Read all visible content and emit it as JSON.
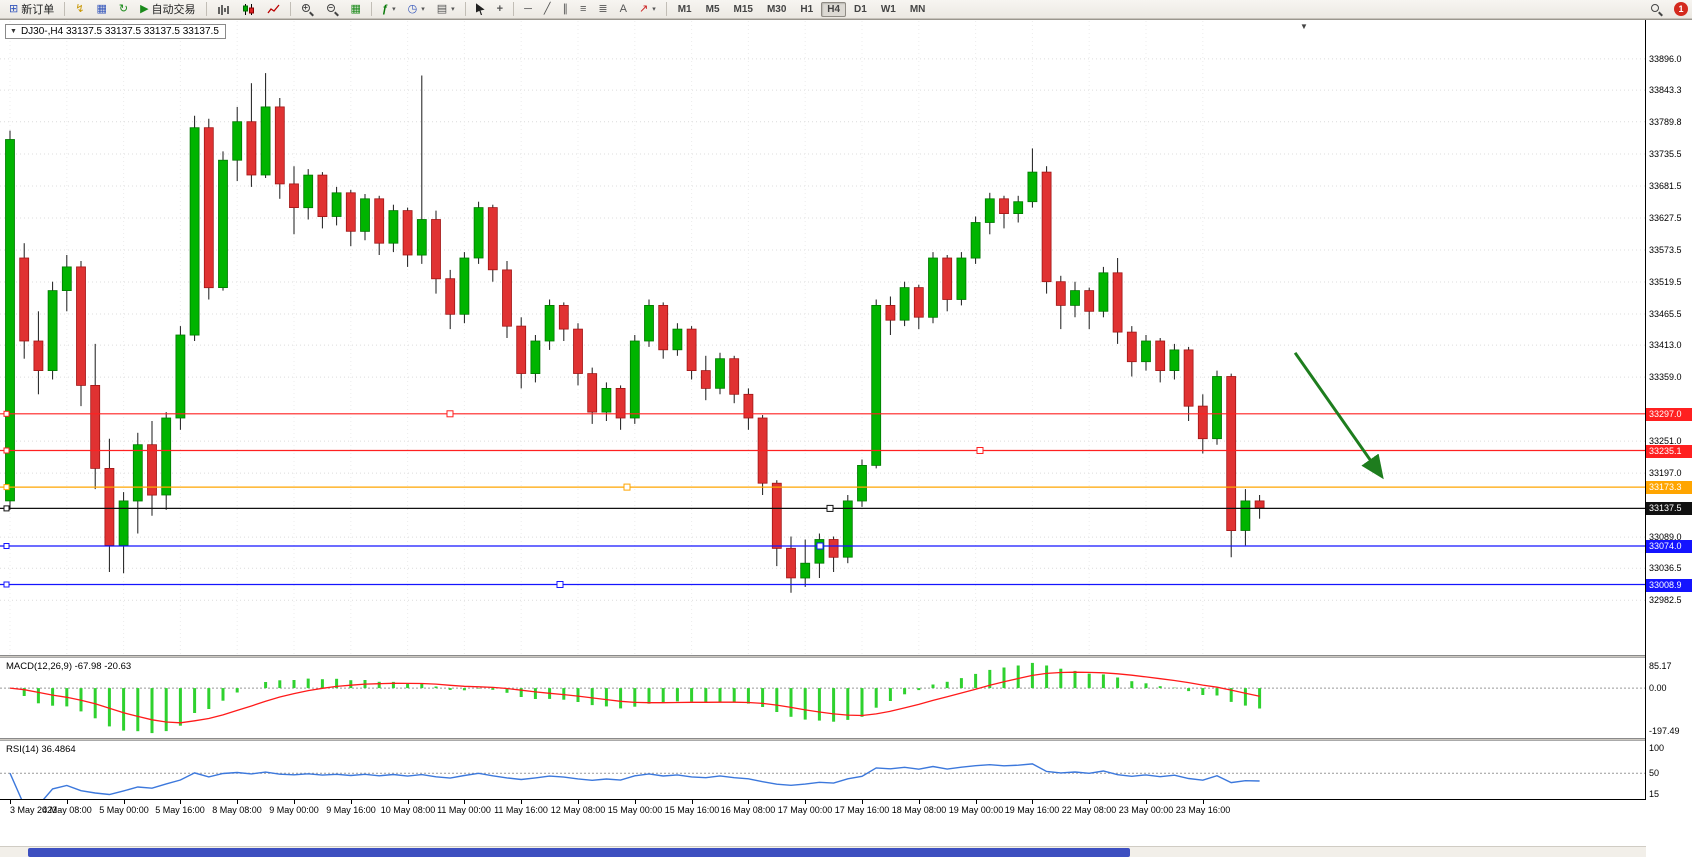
{
  "toolbar": {
    "new_order_label": "新订单",
    "autotrading_label": "自动交易",
    "timeframes": [
      "M1",
      "M5",
      "M15",
      "M30",
      "H1",
      "H4",
      "D1",
      "W1",
      "MN"
    ],
    "active_timeframe": "H4",
    "notification_badge": "1",
    "icon_glyphs": {
      "new_order": "⊞",
      "charts": "↯",
      "market_watch": "▦",
      "refresh": "↻",
      "play": "▶",
      "zoom_in": "+",
      "zoom_out": "−",
      "grid_toggle": "▦",
      "indicator_add": "ƒ",
      "period_clock": "◷",
      "template": "▤",
      "crosshair": "+",
      "hline_tool": "─",
      "trendline_tool": "╱",
      "channel_tool": "∥",
      "fibo_tool": "≡",
      "shapes_tool": "≣",
      "text_tool": "A",
      "arrow_tool": "↗",
      "dropdown": "▾"
    }
  },
  "chart": {
    "title": "DJ30-,H4 33137.5 33137.5 33137.5 33137.5",
    "symbol": "DJ30-",
    "period": "H4",
    "scroll_marker": "▼"
  },
  "indicators": {
    "macd": {
      "label": "MACD(12,26,9) -67.98 -20.63",
      "axis": [
        "85.17",
        "0.00",
        "-197.49"
      ]
    },
    "rsi": {
      "label": "RSI(14) 36.4864",
      "axis": [
        "100",
        "50",
        "15"
      ]
    }
  },
  "chart_data": {
    "type": "candlestick",
    "symbol": "DJ30-",
    "timeframe": "H4",
    "ylim": [
      32890,
      33960
    ],
    "y_ticks": [
      33896.0,
      33843.3,
      33789.8,
      33735.5,
      33681.5,
      33627.5,
      33573.5,
      33519.5,
      33465.5,
      33413.0,
      33359.0,
      33251.0,
      33197.0,
      33089.0,
      33036.5,
      32982.5
    ],
    "label_step": 4,
    "time_labels": [
      "3 May 2023",
      "4 May 08:00",
      "5 May 00:00",
      "5 May 16:00",
      "8 May 08:00",
      "9 May 00:00",
      "9 May 16:00",
      "10 May 08:00",
      "11 May 00:00",
      "11 May 16:00",
      "12 May 08:00",
      "15 May 00:00",
      "15 May 16:00",
      "16 May 08:00",
      "17 May 00:00",
      "17 May 16:00",
      "18 May 08:00",
      "19 May 00:00",
      "19 May 16:00",
      "22 May 08:00",
      "23 May 00:00",
      "23 May 16:00"
    ],
    "colors": {
      "up": "#00b400",
      "down": "#e03232",
      "up_border": "#007700",
      "down_border": "#a01515",
      "wick": "#1a1a1a"
    },
    "ohlc": [
      [
        33150,
        33775,
        33135,
        33760
      ],
      [
        33560,
        33585,
        33390,
        33420
      ],
      [
        33420,
        33470,
        33330,
        33370
      ],
      [
        33370,
        33520,
        33355,
        33505
      ],
      [
        33505,
        33565,
        33470,
        33545
      ],
      [
        33545,
        33555,
        33310,
        33345
      ],
      [
        33345,
        33415,
        33170,
        33205
      ],
      [
        33205,
        33255,
        33030,
        33075
      ],
      [
        33075,
        33165,
        33028,
        33150
      ],
      [
        33150,
        33265,
        33095,
        33245
      ],
      [
        33245,
        33285,
        33125,
        33160
      ],
      [
        33160,
        33300,
        33135,
        33290
      ],
      [
        33290,
        33445,
        33270,
        33430
      ],
      [
        33430,
        33800,
        33420,
        33780
      ],
      [
        33780,
        33795,
        33490,
        33510
      ],
      [
        33510,
        33740,
        33505,
        33725
      ],
      [
        33725,
        33815,
        33690,
        33790
      ],
      [
        33790,
        33855,
        33680,
        33700
      ],
      [
        33700,
        33872,
        33695,
        33815
      ],
      [
        33815,
        33830,
        33660,
        33685
      ],
      [
        33685,
        33715,
        33600,
        33645
      ],
      [
        33645,
        33710,
        33625,
        33700
      ],
      [
        33700,
        33705,
        33610,
        33630
      ],
      [
        33630,
        33680,
        33615,
        33670
      ],
      [
        33670,
        33675,
        33580,
        33605
      ],
      [
        33605,
        33668,
        33590,
        33660
      ],
      [
        33660,
        33665,
        33565,
        33585
      ],
      [
        33585,
        33650,
        33570,
        33640
      ],
      [
        33640,
        33645,
        33545,
        33565
      ],
      [
        33565,
        33868,
        33550,
        33625
      ],
      [
        33625,
        33640,
        33500,
        33525
      ],
      [
        33525,
        33540,
        33440,
        33465
      ],
      [
        33465,
        33570,
        33450,
        33560
      ],
      [
        33560,
        33655,
        33550,
        33645
      ],
      [
        33645,
        33650,
        33520,
        33540
      ],
      [
        33540,
        33555,
        33425,
        33445
      ],
      [
        33445,
        33460,
        33340,
        33365
      ],
      [
        33365,
        33430,
        33350,
        33420
      ],
      [
        33420,
        33490,
        33405,
        33480
      ],
      [
        33480,
        33485,
        33420,
        33440
      ],
      [
        33440,
        33450,
        33345,
        33365
      ],
      [
        33365,
        33375,
        33280,
        33300
      ],
      [
        33300,
        33350,
        33285,
        33340
      ],
      [
        33340,
        33345,
        33270,
        33290
      ],
      [
        33290,
        33430,
        33280,
        33420
      ],
      [
        33420,
        33490,
        33410,
        33480
      ],
      [
        33480,
        33485,
        33390,
        33405
      ],
      [
        33405,
        33450,
        33395,
        33440
      ],
      [
        33440,
        33445,
        33355,
        33370
      ],
      [
        33370,
        33395,
        33320,
        33340
      ],
      [
        33340,
        33400,
        33330,
        33390
      ],
      [
        33390,
        33395,
        33315,
        33330
      ],
      [
        33330,
        33340,
        33270,
        33290
      ],
      [
        33290,
        33295,
        33160,
        33180
      ],
      [
        33180,
        33185,
        33040,
        33070
      ],
      [
        33070,
        33090,
        32995,
        33020
      ],
      [
        33020,
        33085,
        33005,
        33045
      ],
      [
        33045,
        33095,
        33020,
        33085
      ],
      [
        33085,
        33090,
        33030,
        33055
      ],
      [
        33055,
        33160,
        33045,
        33150
      ],
      [
        33150,
        33220,
        33140,
        33210
      ],
      [
        33210,
        33490,
        33205,
        33480
      ],
      [
        33480,
        33495,
        33430,
        33455
      ],
      [
        33455,
        33520,
        33445,
        33510
      ],
      [
        33510,
        33515,
        33440,
        33460
      ],
      [
        33460,
        33570,
        33450,
        33560
      ],
      [
        33560,
        33565,
        33470,
        33490
      ],
      [
        33490,
        33570,
        33480,
        33560
      ],
      [
        33560,
        33630,
        33550,
        33620
      ],
      [
        33620,
        33670,
        33600,
        33660
      ],
      [
        33660,
        33665,
        33610,
        33635
      ],
      [
        33635,
        33665,
        33620,
        33655
      ],
      [
        33655,
        33745,
        33645,
        33705
      ],
      [
        33705,
        33715,
        33500,
        33520
      ],
      [
        33520,
        33530,
        33440,
        33480
      ],
      [
        33480,
        33520,
        33460,
        33505
      ],
      [
        33505,
        33510,
        33440,
        33470
      ],
      [
        33470,
        33545,
        33460,
        33535
      ],
      [
        33535,
        33560,
        33415,
        33435
      ],
      [
        33435,
        33445,
        33360,
        33385
      ],
      [
        33385,
        33430,
        33370,
        33420
      ],
      [
        33420,
        33425,
        33350,
        33370
      ],
      [
        33370,
        33415,
        33355,
        33405
      ],
      [
        33405,
        33410,
        33285,
        33310
      ],
      [
        33310,
        33330,
        33230,
        33255
      ],
      [
        33255,
        33370,
        33245,
        33360
      ],
      [
        33360,
        33365,
        33055,
        33100
      ],
      [
        33100,
        33170,
        33075,
        33150
      ],
      [
        33150,
        33160,
        33120,
        33138
      ]
    ],
    "levels": [
      {
        "price": 33297.0,
        "label": "33297.0",
        "color": "#ff2020",
        "handle_x": 450
      },
      {
        "price": 33235.1,
        "label": "33235.1",
        "color": "#ff2020",
        "handle_x": 980
      },
      {
        "price": 33173.3,
        "label": "33173.3",
        "color": "#ffa500",
        "handle_x": 627
      },
      {
        "price": 33137.5,
        "label": "33137.5",
        "color": "#111111",
        "handle_x": 830,
        "current": true
      },
      {
        "price": 33074.0,
        "label": "33074.0",
        "color": "#1414ff",
        "handle_x": 820
      },
      {
        "price": 33008.9,
        "label": "33008.9",
        "color": "#1414ff",
        "handle_x": 560
      }
    ],
    "arrow": {
      "from_index": 90.5,
      "from_price": 33400,
      "to_index": 96.5,
      "to_price": 33195,
      "color": "#1e7d1e"
    },
    "macd": {
      "fast": 12,
      "slow": 26,
      "signal_period": 9,
      "hist_color": "#2fd12f",
      "signal_color": "#ff1a1a"
    },
    "rsi": {
      "period": 14,
      "color": "#3c78dc",
      "levels": [
        50
      ]
    }
  }
}
